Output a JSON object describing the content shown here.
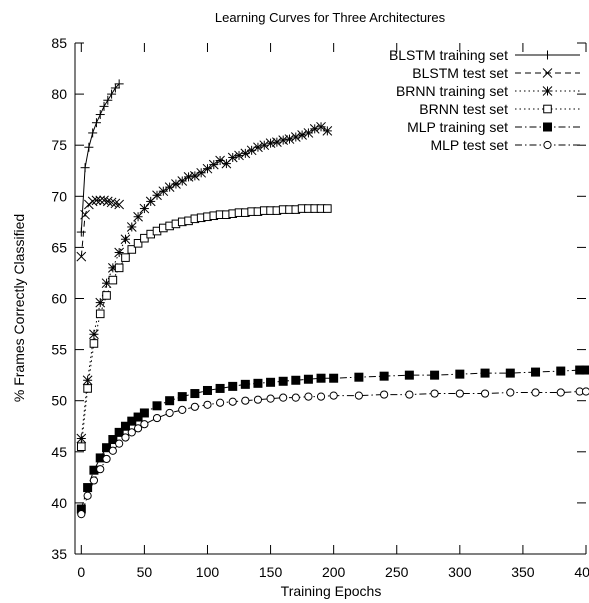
{
  "chart_data": {
    "type": "line",
    "title": "Learning Curves for Three Architectures",
    "xlabel": "Training Epochs",
    "ylabel": "% Frames Correctly Classified",
    "xlim": [
      -5,
      400
    ],
    "ylim": [
      35,
      85
    ],
    "x_ticks": [
      0,
      50,
      100,
      150,
      200,
      250,
      300,
      350,
      400
    ],
    "y_ticks": [
      35,
      40,
      45,
      50,
      55,
      60,
      65,
      70,
      75,
      80,
      85
    ],
    "grid": false,
    "legend_position": "top-right",
    "series": [
      {
        "name": "BLSTM training set",
        "line_style": "solid",
        "marker": "plus",
        "x": [
          0,
          3,
          6,
          9,
          12,
          15,
          18,
          21,
          24,
          27,
          30
        ],
        "y": [
          66.5,
          72.8,
          74.8,
          76.2,
          77.2,
          78.0,
          78.8,
          79.4,
          80.0,
          80.6,
          81.0
        ]
      },
      {
        "name": "BLSTM test set",
        "line_style": "dashed",
        "marker": "x",
        "x": [
          0,
          3,
          6,
          9,
          12,
          15,
          18,
          21,
          24,
          27,
          30
        ],
        "y": [
          64.1,
          68.2,
          69.2,
          69.5,
          69.6,
          69.6,
          69.6,
          69.5,
          69.4,
          69.3,
          69.2
        ]
      },
      {
        "name": "BRNN training set",
        "line_style": "dotted",
        "marker": "asterisk",
        "x": [
          0,
          5,
          10,
          15,
          20,
          25,
          30,
          35,
          40,
          45,
          50,
          55,
          60,
          65,
          70,
          75,
          80,
          85,
          90,
          95,
          100,
          105,
          110,
          115,
          120,
          125,
          130,
          135,
          140,
          145,
          150,
          155,
          160,
          165,
          170,
          175,
          180,
          185,
          190,
          195
        ],
        "y": [
          46.3,
          52.0,
          56.5,
          59.6,
          61.5,
          63.0,
          64.5,
          65.8,
          67.0,
          68.0,
          68.8,
          69.5,
          70.1,
          70.5,
          70.9,
          71.2,
          71.5,
          71.9,
          72.0,
          72.3,
          72.7,
          73.1,
          73.5,
          73.2,
          73.8,
          74.0,
          74.2,
          74.5,
          74.8,
          75.0,
          75.2,
          75.3,
          75.5,
          75.6,
          75.8,
          76.0,
          76.2,
          76.6,
          76.8,
          76.4
        ]
      },
      {
        "name": "BRNN test set",
        "line_style": "dotted",
        "marker": "square",
        "x": [
          0,
          5,
          10,
          15,
          20,
          25,
          30,
          35,
          40,
          45,
          50,
          55,
          60,
          65,
          70,
          75,
          80,
          85,
          90,
          95,
          100,
          105,
          110,
          115,
          120,
          125,
          130,
          135,
          140,
          145,
          150,
          155,
          160,
          165,
          170,
          175,
          180,
          185,
          190,
          195
        ],
        "y": [
          45.5,
          51.2,
          55.6,
          58.5,
          60.3,
          61.8,
          63.0,
          64.0,
          64.8,
          65.4,
          65.9,
          66.3,
          66.6,
          66.9,
          67.1,
          67.3,
          67.5,
          67.6,
          67.8,
          67.9,
          68.0,
          68.1,
          68.2,
          68.2,
          68.3,
          68.4,
          68.4,
          68.5,
          68.5,
          68.6,
          68.6,
          68.6,
          68.7,
          68.7,
          68.7,
          68.8,
          68.8,
          68.8,
          68.8,
          68.8
        ]
      },
      {
        "name": "MLP training set",
        "line_style": "dashdot",
        "marker": "filled-square",
        "x": [
          0,
          5,
          10,
          15,
          20,
          25,
          30,
          35,
          40,
          45,
          50,
          60,
          70,
          80,
          90,
          100,
          110,
          120,
          130,
          140,
          150,
          160,
          170,
          180,
          190,
          200,
          220,
          240,
          260,
          280,
          300,
          320,
          340,
          360,
          380,
          395,
          400
        ],
        "y": [
          39.4,
          41.5,
          43.2,
          44.4,
          45.4,
          46.2,
          46.9,
          47.5,
          48.0,
          48.4,
          48.8,
          49.5,
          50.0,
          50.4,
          50.7,
          51.0,
          51.2,
          51.4,
          51.6,
          51.7,
          51.8,
          51.9,
          52.0,
          52.1,
          52.2,
          52.2,
          52.3,
          52.4,
          52.5,
          52.5,
          52.6,
          52.7,
          52.7,
          52.8,
          52.9,
          53.0,
          53.0
        ]
      },
      {
        "name": "MLP test set",
        "line_style": "dashdot",
        "marker": "circle",
        "x": [
          0,
          5,
          10,
          15,
          20,
          25,
          30,
          35,
          40,
          45,
          50,
          60,
          70,
          80,
          90,
          100,
          110,
          120,
          130,
          140,
          150,
          160,
          170,
          180,
          190,
          200,
          220,
          240,
          260,
          280,
          300,
          320,
          340,
          360,
          380,
          395,
          400
        ],
        "y": [
          38.9,
          40.7,
          42.2,
          43.3,
          44.3,
          45.1,
          45.8,
          46.4,
          46.9,
          47.3,
          47.7,
          48.3,
          48.8,
          49.1,
          49.4,
          49.6,
          49.8,
          49.9,
          50.0,
          50.1,
          50.2,
          50.3,
          50.3,
          50.4,
          50.4,
          50.5,
          50.5,
          50.6,
          50.6,
          50.7,
          50.7,
          50.7,
          50.8,
          50.8,
          50.8,
          50.9,
          50.9
        ]
      }
    ]
  }
}
